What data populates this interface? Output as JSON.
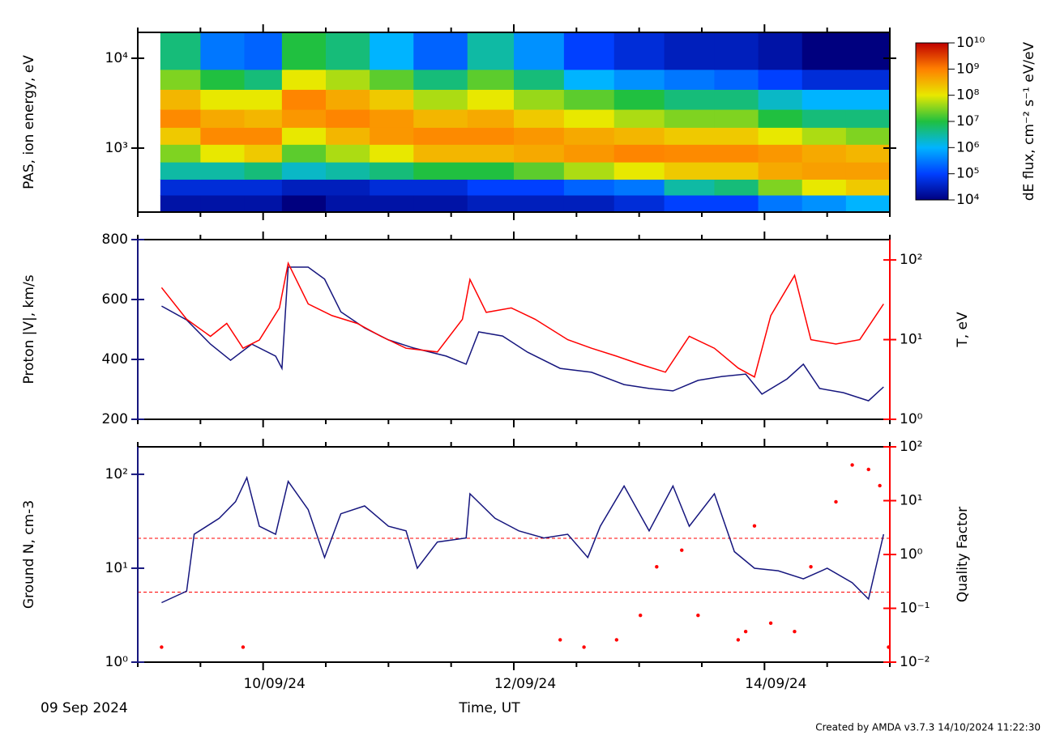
{
  "chart_data": [
    {
      "type": "heatmap",
      "ylabel": "PAS, ion energy, eV",
      "log_y": true,
      "ylim": [
        194,
        19400
      ],
      "yticks": [
        {
          "value": 1000,
          "label": "10³"
        },
        {
          "value": 10000,
          "label": "10⁴"
        }
      ],
      "xlim": [
        0,
        6
      ],
      "xticks": [
        1,
        3,
        5
      ],
      "xminorticks": [
        0,
        0.5,
        1.5,
        2,
        2.5,
        3.5,
        4,
        4.5,
        5.5,
        6
      ],
      "xbins": [
        0.18,
        0.5,
        0.85,
        1.15,
        1.5,
        1.85,
        2.2,
        2.63,
        3.0,
        3.4,
        3.8,
        4.2,
        4.6,
        4.95,
        5.3,
        5.65,
        6.0
      ],
      "ybins": [
        194,
        300,
        450,
        700,
        1100,
        1700,
        2700,
        4500,
        7500,
        19400
      ],
      "values": [
        [
          20000.0,
          20000.0,
          20000.0,
          10000.0,
          20000.0,
          20000.0,
          20000.0,
          30000.0,
          30000.0,
          30000.0,
          50000.0,
          100000.0,
          100000.0,
          300000.0,
          500000.0,
          1000000.0
        ],
        [
          50000.0,
          50000.0,
          50000.0,
          30000.0,
          30000.0,
          50000.0,
          50000.0,
          100000.0,
          100000.0,
          200000.0,
          300000.0,
          3000000.0,
          5000000.0,
          30000000.0,
          100000000.0,
          200000000.0
        ],
        [
          3000000.0,
          3000000.0,
          5000000.0,
          2000000.0,
          3000000.0,
          5000000.0,
          10000000.0,
          10000000.0,
          20000000.0,
          50000000.0,
          100000000.0,
          200000000.0,
          200000000.0,
          400000000.0,
          500000000.0,
          500000000.0
        ],
        [
          30000000.0,
          100000000.0,
          200000000.0,
          20000000.0,
          50000000.0,
          100000000.0,
          300000000.0,
          300000000.0,
          400000000.0,
          600000000.0,
          900000000.0,
          800000000.0,
          800000000.0,
          600000000.0,
          400000000.0,
          300000000.0
        ],
        [
          200000000.0,
          800000000.0,
          800000000.0,
          100000000.0,
          300000000.0,
          600000000.0,
          800000000.0,
          800000000.0,
          600000000.0,
          400000000.0,
          300000000.0,
          200000000.0,
          200000000.0,
          100000000.0,
          50000000.0,
          30000000.0
        ],
        [
          800000000.0,
          400000000.0,
          300000000.0,
          600000000.0,
          900000000.0,
          600000000.0,
          300000000.0,
          400000000.0,
          200000000.0,
          100000000.0,
          50000000.0,
          30000000.0,
          30000000.0,
          10000000.0,
          5000000.0,
          5000000.0
        ],
        [
          300000000.0,
          100000000.0,
          100000000.0,
          900000000.0,
          400000000.0,
          200000000.0,
          50000000.0,
          100000000.0,
          40000000.0,
          20000000.0,
          10000000.0,
          5000000.0,
          5000000.0,
          2000000.0,
          1000000.0,
          1000000.0
        ],
        [
          30000000.0,
          10000000.0,
          5000000.0,
          100000000.0,
          50000000.0,
          20000000.0,
          5000000.0,
          20000000.0,
          5000000.0,
          1000000.0,
          500000.0,
          300000.0,
          200000.0,
          100000.0,
          50000.0,
          50000.0
        ],
        [
          5000000.0,
          300000.0,
          200000.0,
          10000000.0,
          5000000.0,
          1000000.0,
          200000.0,
          3000000.0,
          500000.0,
          100000.0,
          50000.0,
          30000.0,
          30000.0,
          20000.0,
          10000.0,
          10000.0
        ]
      ],
      "clim": [
        10000.0,
        10000000000.0
      ],
      "cticks": [
        {
          "value": 10000.0,
          "label": "10⁴"
        },
        {
          "value": 100000.0,
          "label": "10⁵"
        },
        {
          "value": 1000000.0,
          "label": "10⁶"
        },
        {
          "value": 10000000.0,
          "label": "10⁷"
        },
        {
          "value": 100000000.0,
          "label": "10⁸"
        },
        {
          "value": 1000000000.0,
          "label": "10⁹"
        },
        {
          "value": 10000000000.0,
          "label": "10¹⁰"
        }
      ],
      "colorbar_label": "dE flux, cm⁻² s⁻¹ eV/eV",
      "colorscale": [
        "#00007f",
        "#0040ff",
        "#00b4ff",
        "#20c040",
        "#e8e800",
        "#ff8000",
        "#c00000"
      ]
    },
    {
      "type": "line",
      "ylabel": "Proton |V|, km/s",
      "y2label": "T, eV",
      "ylim": [
        200,
        800
      ],
      "yticks": [
        200,
        400,
        600,
        800
      ],
      "log_y2": true,
      "y2lim": [
        1,
        180
      ],
      "y2ticks": [
        {
          "value": 1,
          "label": "10⁰"
        },
        {
          "value": 10,
          "label": "10¹"
        },
        {
          "value": 100,
          "label": "10²"
        }
      ],
      "xlim": [
        0,
        6
      ],
      "xticks": [
        1,
        3,
        5
      ],
      "xminorticks": [
        0,
        0.5,
        1.5,
        2,
        2.5,
        3.5,
        4,
        4.5,
        5.5,
        6
      ],
      "series": [
        {
          "color": "#16167e",
          "x": [
            0.19,
            0.39,
            0.58,
            0.74,
            0.91,
            1.1,
            1.15,
            1.2,
            1.36,
            1.49,
            1.62,
            1.81,
            2.0,
            2.2,
            2.46,
            2.62,
            2.72,
            2.91,
            3.11,
            3.37,
            3.62,
            3.88,
            4.08,
            4.27,
            4.47,
            4.66,
            4.85,
            4.98,
            5.18,
            5.31,
            5.44,
            5.63,
            5.83,
            5.95
          ],
          "values": [
            578,
            532,
            451,
            397,
            451,
            411,
            370,
            708,
            708,
            668,
            559,
            505,
            465,
            438,
            411,
            384,
            492,
            478,
            424,
            370,
            357,
            316,
            303,
            295,
            330,
            343,
            351,
            284,
            335,
            384,
            303,
            289,
            262,
            308
          ]
        },
        {
          "color": "#ff0000",
          "axis": "y2",
          "x": [
            0.19,
            0.39,
            0.58,
            0.71,
            0.84,
            0.97,
            1.13,
            1.2,
            1.36,
            1.55,
            1.75,
            1.94,
            2.14,
            2.39,
            2.59,
            2.65,
            2.78,
            2.98,
            3.17,
            3.43,
            3.62,
            3.82,
            4.01,
            4.21,
            4.4,
            4.6,
            4.79,
            4.92,
            5.05,
            5.24,
            5.37,
            5.57,
            5.76,
            5.95
          ],
          "values": [
            45,
            18,
            11,
            16,
            7.8,
            9.9,
            25,
            91,
            28,
            20,
            16,
            11,
            7.8,
            7,
            18,
            57,
            22,
            25,
            18,
            10,
            7.8,
            6.2,
            4.9,
            3.9,
            11,
            7.8,
            4.4,
            3.4,
            20,
            64,
            10,
            8.8,
            10,
            28
          ]
        }
      ]
    },
    {
      "type": "line",
      "ylabel": "Ground N, cm-3",
      "y2label": "Quality Factor",
      "log_y": true,
      "ylim": [
        1,
        196
      ],
      "yticks": [
        {
          "value": 1,
          "label": "10⁰"
        },
        {
          "value": 10,
          "label": "10¹"
        },
        {
          "value": 100,
          "label": "10²"
        }
      ],
      "log_y2": true,
      "y2lim": [
        0.01,
        100
      ],
      "y2ticks": [
        {
          "value": 0.01,
          "label": "10⁻²"
        },
        {
          "value": 0.1,
          "label": "10⁻¹"
        },
        {
          "value": 1,
          "label": "10⁰"
        },
        {
          "value": 10,
          "label": "10¹"
        },
        {
          "value": 100,
          "label": "10²"
        }
      ],
      "reference_lines": [
        {
          "value": 2,
          "axis": "y2",
          "color": "#ff0000"
        },
        {
          "value": 0.2,
          "axis": "y2",
          "color": "#ff0000"
        }
      ],
      "xlim": [
        0,
        6
      ],
      "xticks": [
        {
          "value": 1,
          "label": "10/09/24"
        },
        {
          "value": 3,
          "label": "12/09/24"
        },
        {
          "value": 5,
          "label": "14/09/24"
        }
      ],
      "xminorticks": [
        0,
        0.5,
        1.5,
        2,
        2.5,
        3.5,
        4,
        4.5,
        5.5,
        6
      ],
      "xlabel": "Time, UT",
      "date_label": "09 Sep 2024",
      "series": [
        {
          "color": "#16167e",
          "x": [
            0.19,
            0.39,
            0.45,
            0.65,
            0.78,
            0.87,
            0.97,
            1.1,
            1.2,
            1.36,
            1.49,
            1.62,
            1.81,
            2.0,
            2.14,
            2.23,
            2.39,
            2.62,
            2.65,
            2.85,
            3.04,
            3.24,
            3.43,
            3.59,
            3.69,
            3.88,
            4.08,
            4.27,
            4.4,
            4.6,
            4.76,
            4.92,
            5.11,
            5.31,
            5.5,
            5.7,
            5.83,
            5.95
          ],
          "values": [
            4.3,
            5.7,
            23,
            34,
            51,
            92,
            28,
            23,
            84,
            42,
            13,
            38,
            46,
            28,
            25,
            10,
            19,
            21,
            62,
            34,
            25,
            21,
            23,
            13,
            28,
            75,
            25,
            75,
            28,
            62,
            15,
            10,
            9.4,
            7.7,
            10,
            7,
            4.7,
            23
          ]
        },
        {
          "color": "#ff0000",
          "axis": "y2",
          "style": "dots",
          "x": [
            0.19,
            0.84,
            3.37,
            3.56,
            3.82,
            4.01,
            4.14,
            4.34,
            4.47,
            4.79,
            4.85,
            4.92,
            5.05,
            5.24,
            5.37,
            5.57,
            5.7,
            5.83,
            5.92,
            5.99
          ],
          "values": [
            0.019,
            0.019,
            0.026,
            0.019,
            0.026,
            0.074,
            0.59,
            1.2,
            0.074,
            0.026,
            0.037,
            3.4,
            0.053,
            0.037,
            0.59,
            9.5,
            46,
            38,
            19,
            0.019
          ]
        }
      ]
    }
  ],
  "credit": "Created by AMDA v3.7.3 14/10/2024 11:22:30"
}
